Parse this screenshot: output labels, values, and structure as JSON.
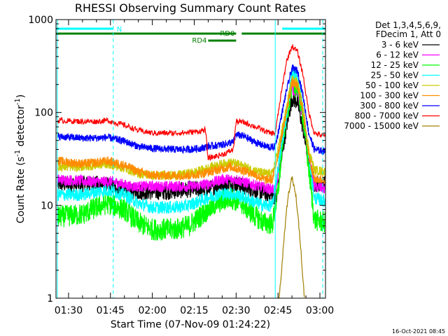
{
  "chart_data": {
    "type": "line",
    "title": "RHESSI Observing Summary Count Rates",
    "xlabel": "Start Time (07-Nov-09 01:24:22)",
    "ylabel_main": "Count Rate (s",
    "ylabel_sup1": "-1",
    "ylabel_mid": " detector",
    "ylabel_sup2": "-1",
    "ylabel_end": ")",
    "y_scale": "log",
    "xlim_minutes": [
      85.5,
      182
    ],
    "ylim": [
      1,
      1000
    ],
    "x_ticks": [
      {
        "label": "01:30",
        "m": 90
      },
      {
        "label": "01:45",
        "m": 105
      },
      {
        "label": "02:00",
        "m": 120
      },
      {
        "label": "02:15",
        "m": 135
      },
      {
        "label": "02:30",
        "m": 150
      },
      {
        "label": "02:45",
        "m": 165
      },
      {
        "label": "03:00",
        "m": 180
      }
    ],
    "y_ticks": [
      {
        "label": "1",
        "v": 1
      },
      {
        "label": "10",
        "v": 10
      },
      {
        "label": "100",
        "v": 100
      },
      {
        "label": "1000",
        "v": 1000
      }
    ],
    "legend_header": [
      "Det 1,3,4,5,6,9,",
      "FDecim 1, Att 0"
    ],
    "legend_placement": "right",
    "timestamp": "16-Oct-2021 08:45",
    "state_bars": [
      {
        "label": "N",
        "color": "#00ffff",
        "segments": [
          [
            85.5,
            106
          ],
          [
            166.5,
            182
          ]
        ],
        "row": 1
      },
      {
        "label": "RD0",
        "color": "#008000",
        "segments": [
          [
            85.5,
            150
          ],
          [
            152,
            182
          ]
        ],
        "row": 2
      },
      {
        "label": "RD4",
        "color": "#008000",
        "segments": [
          [
            140,
            150
          ]
        ],
        "row": 3
      }
    ],
    "vlines": [
      {
        "m": 86,
        "color": "#00ffff",
        "style": "solid"
      },
      {
        "m": 106,
        "color": "#00ffff",
        "style": "dashed"
      },
      {
        "m": 164,
        "color": "#00ffff",
        "style": "solid"
      },
      {
        "m": 181,
        "color": "#00ffff",
        "style": "dashed"
      }
    ],
    "series": [
      {
        "name": "3 - 6 keV",
        "color": "#000000",
        "noise": 0.09,
        "points": [
          [
            86,
            17
          ],
          [
            100,
            17
          ],
          [
            106,
            16
          ],
          [
            112,
            14
          ],
          [
            125,
            14
          ],
          [
            135,
            15
          ],
          [
            140,
            15
          ],
          [
            145,
            17
          ],
          [
            150,
            17
          ],
          [
            155,
            15
          ],
          [
            162,
            13
          ],
          [
            164.5,
            12
          ],
          [
            166,
            28
          ],
          [
            168,
            70
          ],
          [
            170,
            140
          ],
          [
            172,
            130
          ],
          [
            174,
            65
          ],
          [
            176,
            30
          ],
          [
            178,
            17
          ],
          [
            182,
            17
          ]
        ]
      },
      {
        "name": "6 - 12 keV",
        "color": "#ff00ff",
        "noise": 0.06,
        "points": [
          [
            86,
            19
          ],
          [
            100,
            18
          ],
          [
            106,
            18
          ],
          [
            112,
            16
          ],
          [
            125,
            16
          ],
          [
            135,
            16
          ],
          [
            140,
            17
          ],
          [
            145,
            19
          ],
          [
            150,
            19
          ],
          [
            155,
            17
          ],
          [
            162,
            15
          ],
          [
            164.5,
            15
          ],
          [
            166,
            40
          ],
          [
            168,
            105
          ],
          [
            170,
            180
          ],
          [
            172,
            165
          ],
          [
            174,
            85
          ],
          [
            176,
            35
          ],
          [
            178,
            16
          ],
          [
            182,
            15
          ]
        ]
      },
      {
        "name": "12 - 25 keV",
        "color": "#00ff00",
        "noise": 0.12,
        "points": [
          [
            86,
            7.5
          ],
          [
            95,
            8
          ],
          [
            100,
            9.5
          ],
          [
            104,
            10.5
          ],
          [
            110,
            9
          ],
          [
            115,
            6.5
          ],
          [
            120,
            5.5
          ],
          [
            128,
            5.5
          ],
          [
            133,
            6
          ],
          [
            138,
            8
          ],
          [
            143,
            10.5
          ],
          [
            148,
            12
          ],
          [
            152,
            10.5
          ],
          [
            156,
            8
          ],
          [
            160,
            6.5
          ],
          [
            163,
            6.3
          ],
          [
            165,
            14
          ],
          [
            167,
            60
          ],
          [
            170,
            200
          ],
          [
            172,
            185
          ],
          [
            174,
            90
          ],
          [
            176,
            25
          ],
          [
            178,
            7
          ],
          [
            182,
            6.5
          ]
        ]
      },
      {
        "name": "25 - 50 keV",
        "color": "#00ffff",
        "noise": 0.07,
        "points": [
          [
            86,
            13
          ],
          [
            95,
            13
          ],
          [
            100,
            14
          ],
          [
            104,
            14.5
          ],
          [
            110,
            13
          ],
          [
            115,
            10.5
          ],
          [
            120,
            9.5
          ],
          [
            128,
            9.5
          ],
          [
            133,
            10
          ],
          [
            138,
            11.5
          ],
          [
            143,
            13
          ],
          [
            148,
            13.5
          ],
          [
            152,
            12.5
          ],
          [
            156,
            11
          ],
          [
            160,
            10
          ],
          [
            163,
            10
          ],
          [
            165,
            25
          ],
          [
            168,
            90
          ],
          [
            170,
            270
          ],
          [
            172,
            250
          ],
          [
            174,
            110
          ],
          [
            176,
            35
          ],
          [
            178,
            12
          ],
          [
            182,
            11
          ]
        ]
      },
      {
        "name": "50 - 100 keV",
        "color": "#cccc00",
        "noise": 0.05,
        "points": [
          [
            86,
            26
          ],
          [
            95,
            26
          ],
          [
            100,
            27
          ],
          [
            104,
            28
          ],
          [
            110,
            25
          ],
          [
            115,
            22
          ],
          [
            120,
            21
          ],
          [
            128,
            21
          ],
          [
            133,
            22
          ],
          [
            138,
            24
          ],
          [
            143,
            27
          ],
          [
            148,
            29
          ],
          [
            152,
            27
          ],
          [
            156,
            24
          ],
          [
            160,
            22
          ],
          [
            163,
            22
          ],
          [
            165,
            40
          ],
          [
            168,
            110
          ],
          [
            170,
            230
          ],
          [
            172,
            210
          ],
          [
            174,
            110
          ],
          [
            176,
            40
          ],
          [
            178,
            24
          ],
          [
            182,
            23
          ]
        ]
      },
      {
        "name": "100 - 300 keV",
        "color": "#ff8c00",
        "noise": 0.05,
        "points": [
          [
            86,
            30
          ],
          [
            95,
            28
          ],
          [
            100,
            29
          ],
          [
            104,
            30
          ],
          [
            110,
            27
          ],
          [
            115,
            23
          ],
          [
            120,
            21
          ],
          [
            128,
            21
          ],
          [
            133,
            21
          ],
          [
            138,
            22
          ],
          [
            143,
            24
          ],
          [
            148,
            26
          ],
          [
            152,
            24
          ],
          [
            156,
            22
          ],
          [
            160,
            19
          ],
          [
            163,
            19
          ],
          [
            165,
            35
          ],
          [
            168,
            100
          ],
          [
            170,
            210
          ],
          [
            172,
            190
          ],
          [
            174,
            100
          ],
          [
            176,
            35
          ],
          [
            178,
            19
          ],
          [
            182,
            19
          ]
        ]
      },
      {
        "name": "300 - 800 keV",
        "color": "#0000ff",
        "noise": 0.04,
        "points": [
          [
            86,
            55
          ],
          [
            95,
            53
          ],
          [
            100,
            53
          ],
          [
            104,
            54
          ],
          [
            110,
            49
          ],
          [
            115,
            43
          ],
          [
            120,
            41
          ],
          [
            128,
            40
          ],
          [
            133,
            40
          ],
          [
            137,
            41
          ],
          [
            140,
            43
          ],
          [
            145,
            45
          ],
          [
            149,
            48
          ],
          [
            150,
            58
          ],
          [
            153,
            55
          ],
          [
            158,
            46
          ],
          [
            162,
            42
          ],
          [
            164,
            43
          ],
          [
            165,
            60
          ],
          [
            168,
            170
          ],
          [
            170,
            300
          ],
          [
            172,
            280
          ],
          [
            174,
            150
          ],
          [
            176,
            60
          ],
          [
            178,
            40
          ],
          [
            182,
            38
          ]
        ]
      },
      {
        "name": "800 - 7000 keV",
        "color": "#ff0000",
        "noise": 0.03,
        "points": [
          [
            86,
            82
          ],
          [
            95,
            80
          ],
          [
            100,
            80
          ],
          [
            104,
            82
          ],
          [
            110,
            73
          ],
          [
            115,
            64
          ],
          [
            120,
            60
          ],
          [
            128,
            60
          ],
          [
            133,
            61
          ],
          [
            137,
            63
          ],
          [
            139,
            65
          ],
          [
            140,
            32
          ],
          [
            143,
            34
          ],
          [
            146,
            36
          ],
          [
            149,
            40
          ],
          [
            150,
            80
          ],
          [
            153,
            78
          ],
          [
            158,
            68
          ],
          [
            162,
            60
          ],
          [
            164,
            60
          ],
          [
            166,
            150
          ],
          [
            168,
            350
          ],
          [
            170,
            520
          ],
          [
            172,
            450
          ],
          [
            174,
            250
          ],
          [
            176,
            100
          ],
          [
            178,
            60
          ],
          [
            182,
            55
          ]
        ]
      },
      {
        "name": "7000 - 15000 keV",
        "color": "#a08000",
        "noise": 0.03,
        "points": [
          [
            165.3,
            1
          ],
          [
            166,
            1.5
          ],
          [
            167,
            4
          ],
          [
            168.5,
            12
          ],
          [
            170,
            20
          ],
          [
            171.5,
            12
          ],
          [
            173,
            4
          ],
          [
            174,
            1.5
          ],
          [
            174.5,
            1
          ]
        ]
      }
    ]
  }
}
